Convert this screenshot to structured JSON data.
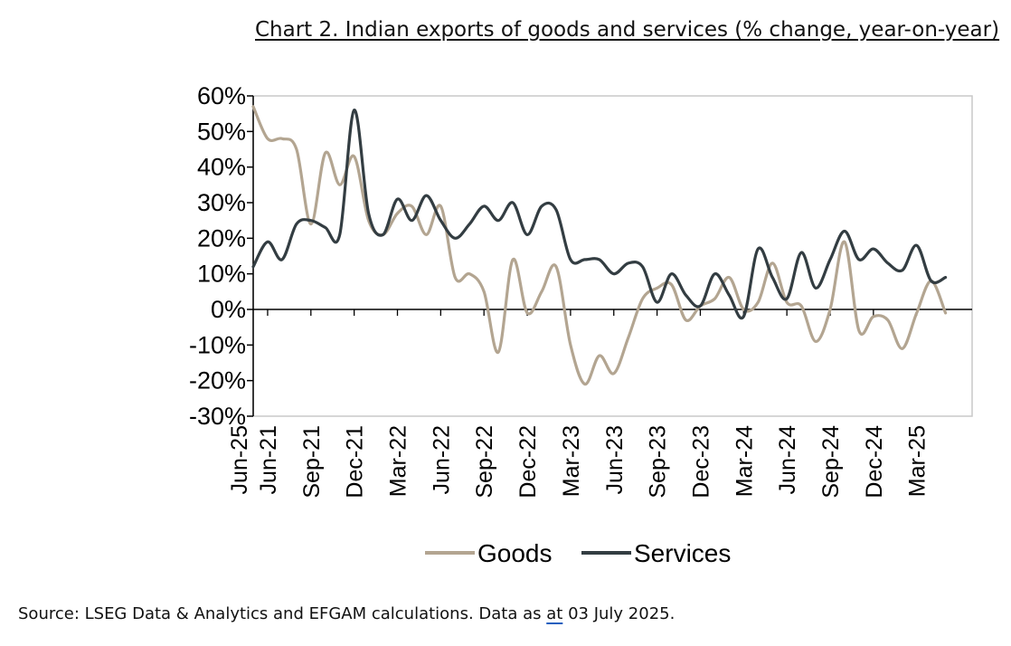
{
  "chart_data": {
    "type": "line",
    "title": "Chart 2. Indian exports of goods and services (% change, year-on-year)",
    "ylim": [
      -30,
      60
    ],
    "yticks": [
      -30,
      -20,
      -10,
      0,
      10,
      20,
      30,
      40,
      50,
      60
    ],
    "ytick_labels": [
      "-30%",
      "-20%",
      "-10%",
      "0%",
      "10%",
      "20%",
      "30%",
      "40%",
      "50%",
      "60%"
    ],
    "xtick_labels": [
      "Jun-21",
      "Sep-21",
      "Dec-21",
      "Mar-22",
      "Jun-22",
      "Sep-22",
      "Dec-22",
      "Mar-23",
      "Jun-23",
      "Sep-23",
      "Dec-23",
      "Mar-24",
      "Jun-24",
      "Sep-24",
      "Dec-24",
      "Mar-25",
      "Jun-25"
    ],
    "x": [
      "May-21",
      "Jun-21",
      "Jul-21",
      "Aug-21",
      "Sep-21",
      "Oct-21",
      "Nov-21",
      "Dec-21",
      "Jan-22",
      "Feb-22",
      "Mar-22",
      "Apr-22",
      "May-22",
      "Jun-22",
      "Jul-22",
      "Aug-22",
      "Sep-22",
      "Oct-22",
      "Nov-22",
      "Dec-22",
      "Jan-23",
      "Feb-23",
      "Mar-23",
      "Apr-23",
      "May-23",
      "Jun-23",
      "Jul-23",
      "Aug-23",
      "Sep-23",
      "Oct-23",
      "Nov-23",
      "Dec-23",
      "Jan-24",
      "Feb-24",
      "Mar-24",
      "Apr-24",
      "May-24",
      "Jun-24",
      "Jul-24",
      "Aug-24",
      "Sep-24",
      "Oct-24",
      "Nov-24",
      "Dec-24",
      "Jan-25",
      "Feb-25",
      "Mar-25",
      "Apr-25",
      "May-25"
    ],
    "series": [
      {
        "name": "Goods",
        "color": "#b3a591",
        "values": [
          57,
          48,
          48,
          45,
          24,
          44,
          35,
          43,
          25,
          21,
          27,
          29,
          21,
          29,
          9,
          10,
          5,
          -12,
          14,
          -1,
          5,
          12,
          -10,
          -21,
          -13,
          -18,
          -8,
          3,
          6,
          7,
          -3,
          1,
          3,
          9,
          0,
          2,
          13,
          2,
          1,
          -9,
          0,
          19,
          -6,
          -2,
          -3,
          -11,
          -1,
          8,
          -1
        ]
      },
      {
        "name": "Services",
        "color": "#333d42",
        "values": [
          12,
          19,
          14,
          24,
          25,
          23,
          21,
          56,
          27,
          21,
          31,
          25,
          32,
          25,
          20,
          24,
          29,
          25,
          30,
          21,
          29,
          28,
          14,
          14,
          14,
          10,
          13,
          12,
          2,
          10,
          4,
          1,
          10,
          4,
          -2,
          17,
          9,
          3,
          16,
          6,
          14,
          22,
          14,
          17,
          13,
          11,
          18,
          8,
          9
        ]
      }
    ],
    "legend_position": "bottom-center",
    "grid": false
  },
  "source_text": {
    "before": "Source: LSEG Data & Analytics and EFGAM calculations. Data as ",
    "underlined": "at",
    "after": " 03 July 2025."
  }
}
